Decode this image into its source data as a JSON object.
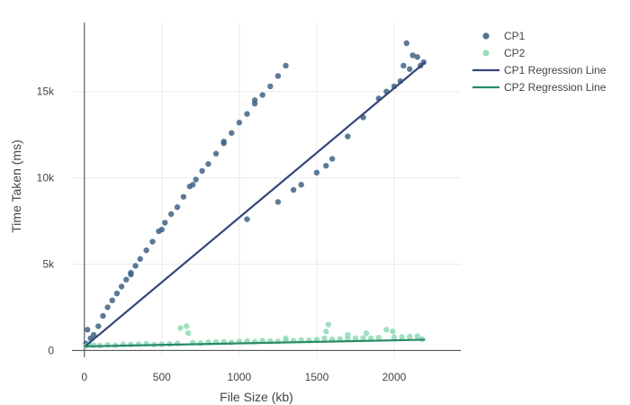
{
  "chart_data": {
    "type": "scatter",
    "xlabel": "File Size (kb)",
    "ylabel": "Time Taken (ms)",
    "xlim": [
      -80,
      2430
    ],
    "ylim": [
      -400,
      19000
    ],
    "x_ticks": [
      0,
      500,
      1000,
      1500,
      2000
    ],
    "x_tick_labels": [
      "0",
      "500",
      "1000",
      "1500",
      "2000"
    ],
    "y_ticks": [
      0,
      5000,
      10000,
      15000
    ],
    "y_tick_labels": [
      "0",
      "5k",
      "10k",
      "15k"
    ],
    "grid": true,
    "legend_position": "top-right",
    "series": [
      {
        "name": "CP1",
        "kind": "markers",
        "color": "#3f6385",
        "points": [
          [
            10,
            400
          ],
          [
            20,
            1200
          ],
          [
            40,
            700
          ],
          [
            60,
            900
          ],
          [
            90,
            1400
          ],
          [
            120,
            2000
          ],
          [
            150,
            2500
          ],
          [
            180,
            2900
          ],
          [
            210,
            3300
          ],
          [
            240,
            3700
          ],
          [
            270,
            4100
          ],
          [
            300,
            4400
          ],
          [
            330,
            4900
          ],
          [
            360,
            5300
          ],
          [
            400,
            5800
          ],
          [
            440,
            6300
          ],
          [
            480,
            6900
          ],
          [
            520,
            7400
          ],
          [
            560,
            7900
          ],
          [
            600,
            8300
          ],
          [
            640,
            8900
          ],
          [
            680,
            9500
          ],
          [
            720,
            9900
          ],
          [
            760,
            10400
          ],
          [
            800,
            10800
          ],
          [
            850,
            11400
          ],
          [
            900,
            12000
          ],
          [
            950,
            12600
          ],
          [
            1000,
            13200
          ],
          [
            1050,
            13700
          ],
          [
            1100,
            14300
          ],
          [
            1150,
            14800
          ],
          [
            1200,
            15300
          ],
          [
            1250,
            15900
          ],
          [
            1300,
            16500
          ],
          [
            300,
            4500
          ],
          [
            500,
            7000
          ],
          [
            700,
            9600
          ],
          [
            900,
            12100
          ],
          [
            1100,
            14500
          ],
          [
            1400,
            9600
          ],
          [
            1500,
            10300
          ],
          [
            1560,
            10700
          ],
          [
            1600,
            11100
          ],
          [
            1700,
            12400
          ],
          [
            1800,
            13500
          ],
          [
            1900,
            14600
          ],
          [
            1950,
            15000
          ],
          [
            2000,
            15300
          ],
          [
            2040,
            15600
          ],
          [
            2060,
            16500
          ],
          [
            2080,
            17800
          ],
          [
            2100,
            16300
          ],
          [
            2120,
            17100
          ],
          [
            2150,
            17000
          ],
          [
            2170,
            16500
          ],
          [
            2190,
            16700
          ],
          [
            1050,
            7600
          ],
          [
            1250,
            8600
          ],
          [
            1350,
            9300
          ]
        ]
      },
      {
        "name": "CP2",
        "kind": "markers",
        "color": "#8fd9b5",
        "points": [
          [
            10,
            250
          ],
          [
            30,
            350
          ],
          [
            60,
            300
          ],
          [
            100,
            280
          ],
          [
            150,
            320
          ],
          [
            200,
            300
          ],
          [
            250,
            350
          ],
          [
            300,
            340
          ],
          [
            350,
            360
          ],
          [
            400,
            380
          ],
          [
            450,
            330
          ],
          [
            500,
            360
          ],
          [
            550,
            370
          ],
          [
            600,
            400
          ],
          [
            620,
            1300
          ],
          [
            660,
            1400
          ],
          [
            670,
            1000
          ],
          [
            700,
            450
          ],
          [
            750,
            420
          ],
          [
            800,
            460
          ],
          [
            850,
            480
          ],
          [
            900,
            500
          ],
          [
            950,
            460
          ],
          [
            1000,
            520
          ],
          [
            1050,
            540
          ],
          [
            1100,
            500
          ],
          [
            1150,
            560
          ],
          [
            1200,
            540
          ],
          [
            1250,
            520
          ],
          [
            1300,
            580
          ],
          [
            1350,
            560
          ],
          [
            1400,
            600
          ],
          [
            1450,
            580
          ],
          [
            1500,
            620
          ],
          [
            1550,
            700
          ],
          [
            1560,
            1100
          ],
          [
            1575,
            1500
          ],
          [
            1600,
            640
          ],
          [
            1650,
            660
          ],
          [
            1700,
            680
          ],
          [
            1750,
            700
          ],
          [
            1800,
            720
          ],
          [
            1820,
            1000
          ],
          [
            1850,
            700
          ],
          [
            1900,
            740
          ],
          [
            1950,
            1200
          ],
          [
            2000,
            760
          ],
          [
            2050,
            780
          ],
          [
            2100,
            800
          ],
          [
            2150,
            820
          ],
          [
            2180,
            650
          ],
          [
            1990,
            1100
          ],
          [
            1700,
            900
          ],
          [
            1300,
            700
          ]
        ]
      },
      {
        "name": "CP1 Regression Line",
        "kind": "line",
        "color": "#34467a",
        "points": [
          [
            0,
            200
          ],
          [
            2200,
            16700
          ]
        ]
      },
      {
        "name": "CP2 Regression Line",
        "kind": "line",
        "color": "#2a8a68",
        "points": [
          [
            0,
            230
          ],
          [
            2200,
            620
          ]
        ]
      }
    ]
  }
}
